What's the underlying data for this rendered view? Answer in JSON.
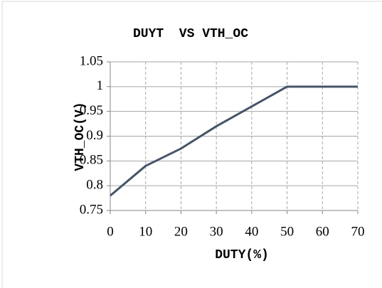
{
  "chart_data": {
    "type": "line",
    "title": "DUYT  VS VTH_OC",
    "x_label": "DUTY(%)",
    "y_label": "VTH_OC(V)",
    "x": [
      0,
      10,
      20,
      30,
      40,
      50,
      60,
      70
    ],
    "series": [
      {
        "name": "VTH_OC",
        "color": "#44546a",
        "values": [
          0.78,
          0.84,
          0.875,
          0.92,
          0.96,
          1.0,
          1.0,
          1.0
        ]
      }
    ],
    "xlim": [
      0,
      70
    ],
    "xticks": [
      0,
      10,
      20,
      30,
      40,
      50,
      60,
      70
    ],
    "ylim": [
      0.75,
      1.05
    ],
    "yticks": [
      0.75,
      0.8,
      0.85,
      0.9,
      0.95,
      1,
      1.05
    ],
    "grid": true
  }
}
